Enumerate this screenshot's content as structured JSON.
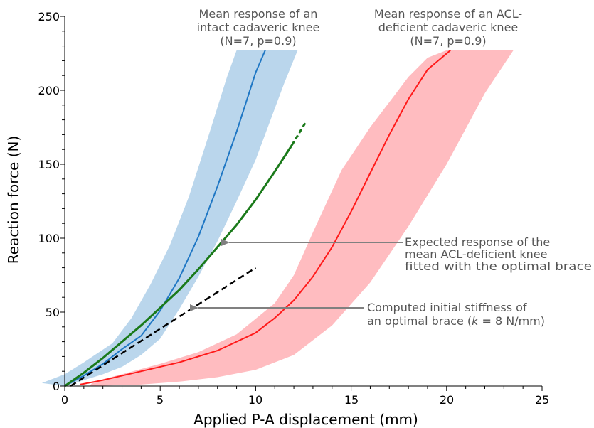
{
  "chart_data": {
    "type": "line",
    "xlabel": "Applied P-A displacement (mm)",
    "ylabel": "Reaction force (N)",
    "xlim": [
      0,
      25
    ],
    "ylim": [
      0,
      250
    ],
    "xticks": [
      "0",
      "5",
      "10",
      "15",
      "20",
      "25"
    ],
    "yticks": [
      "0",
      "50",
      "100",
      "150",
      "200",
      "250"
    ],
    "grid": false,
    "colors": {
      "intact": "#1f77c4",
      "intact_band": "#bad6ec",
      "acl": "#ff1a1a",
      "acl_band": "#ffbcc0",
      "braced": "#1a7a1a",
      "stiffness": "#000000",
      "arrow": "#808080"
    },
    "series": [
      {
        "key": "intact",
        "x": [
          0,
          1,
          2,
          3,
          4,
          5,
          6,
          7,
          8,
          9,
          10,
          10.5
        ],
        "y": [
          0,
          7,
          15,
          25,
          34,
          51,
          73,
          101,
          135,
          172,
          212,
          227
        ]
      },
      {
        "key": "intact_band",
        "upper_x": [
          -1.2,
          0,
          1,
          2.5,
          3.5,
          4.5,
          5.5,
          6.5,
          7.5,
          8.5,
          9,
          11.8
        ],
        "upper_y": [
          2,
          8,
          16,
          29,
          46,
          69,
          95,
          128,
          168,
          209,
          227,
          227
        ],
        "lower_x": [
          0,
          1,
          2,
          3,
          4,
          5,
          6,
          7,
          8,
          9,
          10,
          11.5,
          12.2,
          11.6
        ],
        "lower_y": [
          0,
          4,
          8,
          13,
          21,
          32,
          52,
          74,
          98,
          125,
          153,
          205,
          227,
          227
        ]
      },
      {
        "key": "acl",
        "x": [
          0.8,
          2,
          4,
          6,
          8,
          10,
          11,
          12,
          13,
          14,
          15,
          16,
          17,
          18,
          19,
          20.2
        ],
        "y": [
          1,
          4,
          10,
          16,
          24,
          36,
          46,
          58,
          74,
          94,
          118,
          144,
          170,
          194,
          214,
          227
        ]
      },
      {
        "key": "acl_band",
        "upper_x": [
          1.5,
          3,
          5,
          7,
          9,
          11,
          12,
          13,
          14.5,
          16,
          17,
          18,
          19,
          20,
          21.5,
          23.5
        ],
        "upper_y": [
          3,
          8,
          15,
          23,
          35,
          56,
          75,
          104,
          146,
          175,
          192,
          209,
          222,
          227,
          227,
          227
        ],
        "lower_x": [
          1.3,
          4,
          6,
          8,
          10,
          12,
          14,
          16,
          18,
          20,
          22,
          23.5
        ],
        "lower_y": [
          0,
          1,
          3,
          6,
          11,
          21,
          41,
          70,
          108,
          150,
          198,
          227
        ]
      },
      {
        "key": "braced",
        "x": [
          0,
          1,
          2,
          3,
          4,
          5,
          6,
          7,
          8,
          9,
          10,
          11,
          11.9
        ],
        "y": [
          0,
          9,
          19,
          30,
          41,
          53,
          65,
          79,
          94,
          109,
          126,
          145,
          163
        ],
        "dashed_x": [
          11.9,
          12.6
        ],
        "dashed_y": [
          163,
          178
        ]
      },
      {
        "key": "stiffness",
        "x": [
          0.3,
          10
        ],
        "y": [
          0,
          80
        ]
      }
    ],
    "annotations": [
      {
        "key": "intact_label",
        "lines": [
          "Mean response of an",
          "intact cadaveric knee",
          "(N=7, p=0.9)"
        ]
      },
      {
        "key": "acl_label",
        "lines": [
          "Mean response of an ACL-",
          "deficient cadaveric knee",
          "(N=7, p=0.9)"
        ]
      },
      {
        "key": "braced_label",
        "lines": [
          "Expected response of the",
          "mean ACL-deficient knee",
          "fitted with the optimal brace"
        ]
      },
      {
        "key": "stiffness_label",
        "line1": "Computed initial stiffness of",
        "line2_prefix": "an optimal brace (",
        "line2_k": "k",
        "line2_suffix": " = 8 N/mm)"
      }
    ]
  }
}
